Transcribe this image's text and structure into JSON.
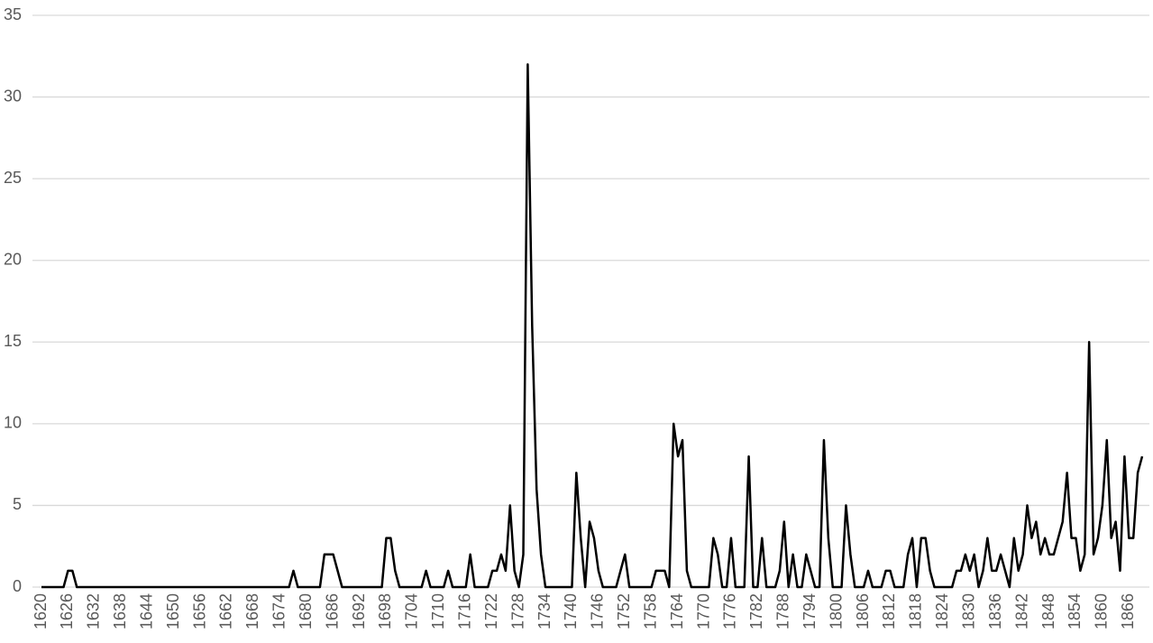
{
  "chart_data": {
    "type": "line",
    "x": [
      1620,
      1621,
      1622,
      1623,
      1624,
      1625,
      1626,
      1627,
      1628,
      1629,
      1630,
      1631,
      1632,
      1633,
      1634,
      1635,
      1636,
      1637,
      1638,
      1639,
      1640,
      1641,
      1642,
      1643,
      1644,
      1645,
      1646,
      1647,
      1648,
      1649,
      1650,
      1651,
      1652,
      1653,
      1654,
      1655,
      1656,
      1657,
      1658,
      1659,
      1660,
      1661,
      1662,
      1663,
      1664,
      1665,
      1666,
      1667,
      1668,
      1669,
      1670,
      1671,
      1672,
      1673,
      1674,
      1675,
      1676,
      1677,
      1678,
      1679,
      1680,
      1681,
      1682,
      1683,
      1684,
      1685,
      1686,
      1687,
      1688,
      1689,
      1690,
      1691,
      1692,
      1693,
      1694,
      1695,
      1696,
      1697,
      1698,
      1699,
      1700,
      1701,
      1702,
      1703,
      1704,
      1705,
      1706,
      1707,
      1708,
      1709,
      1710,
      1711,
      1712,
      1713,
      1714,
      1715,
      1716,
      1717,
      1718,
      1719,
      1720,
      1721,
      1722,
      1723,
      1724,
      1725,
      1726,
      1727,
      1728,
      1729,
      1730,
      1731,
      1732,
      1733,
      1734,
      1735,
      1736,
      1737,
      1738,
      1739,
      1740,
      1741,
      1742,
      1743,
      1744,
      1745,
      1746,
      1747,
      1748,
      1749,
      1750,
      1751,
      1752,
      1753,
      1754,
      1755,
      1756,
      1757,
      1758,
      1759,
      1760,
      1761,
      1762,
      1763,
      1764,
      1765,
      1766,
      1767,
      1768,
      1769,
      1770,
      1771,
      1772,
      1773,
      1774,
      1775,
      1776,
      1777,
      1778,
      1779,
      1780,
      1781,
      1782,
      1783,
      1784,
      1785,
      1786,
      1787,
      1788,
      1789,
      1790,
      1791,
      1792,
      1793,
      1794,
      1795,
      1796,
      1797,
      1798,
      1799,
      1800,
      1801,
      1802,
      1803,
      1804,
      1805,
      1806,
      1807,
      1808,
      1809,
      1810,
      1811,
      1812,
      1813,
      1814,
      1815,
      1816,
      1817,
      1818,
      1819,
      1820,
      1821,
      1822,
      1823,
      1824,
      1825,
      1826,
      1827,
      1828,
      1829,
      1830,
      1831,
      1832,
      1833,
      1834,
      1835,
      1836,
      1837,
      1838,
      1839,
      1840,
      1841,
      1842,
      1843,
      1844,
      1845,
      1846,
      1847,
      1848,
      1849,
      1850,
      1851,
      1852,
      1853,
      1854,
      1855,
      1856,
      1857,
      1858,
      1859,
      1860,
      1861,
      1862,
      1863,
      1864,
      1865,
      1866,
      1867,
      1868,
      1869
    ],
    "series": [
      {
        "color": "#000000",
        "values": [
          0,
          0,
          0,
          0,
          0,
          0,
          1,
          1,
          0,
          0,
          0,
          0,
          0,
          0,
          0,
          0,
          0,
          0,
          0,
          0,
          0,
          0,
          0,
          0,
          0,
          0,
          0,
          0,
          0,
          0,
          0,
          0,
          0,
          0,
          0,
          0,
          0,
          0,
          0,
          0,
          0,
          0,
          0,
          0,
          0,
          0,
          0,
          0,
          0,
          0,
          0,
          0,
          0,
          0,
          0,
          0,
          0,
          1,
          0,
          0,
          0,
          0,
          0,
          0,
          2,
          2,
          2,
          1,
          0,
          0,
          0,
          0,
          0,
          0,
          0,
          0,
          0,
          0,
          3,
          3,
          1,
          0,
          0,
          0,
          0,
          0,
          0,
          1,
          0,
          0,
          0,
          0,
          1,
          0,
          0,
          0,
          0,
          2,
          0,
          0,
          0,
          0,
          1,
          1,
          2,
          1,
          5,
          1,
          0,
          2,
          32,
          16,
          6,
          2,
          0,
          0,
          0,
          0,
          0,
          0,
          0,
          7,
          3,
          0,
          4,
          3,
          1,
          0,
          0,
          0,
          0,
          1,
          2,
          0,
          0,
          0,
          0,
          0,
          0,
          1,
          1,
          1,
          0,
          10,
          8,
          9,
          1,
          0,
          0,
          0,
          0,
          0,
          3,
          2,
          0,
          0,
          3,
          0,
          0,
          0,
          8,
          0,
          0,
          3,
          0,
          0,
          0,
          1,
          4,
          0,
          2,
          0,
          0,
          2,
          1,
          0,
          0,
          9,
          3,
          0,
          0,
          0,
          5,
          2,
          0,
          0,
          0,
          1,
          0,
          0,
          0,
          1,
          1,
          0,
          0,
          0,
          2,
          3,
          0,
          3,
          3,
          1,
          0,
          0,
          0,
          0,
          0,
          1,
          1,
          2,
          1,
          2,
          0,
          1,
          3,
          1,
          1,
          2,
          1,
          0,
          3,
          1,
          2,
          5,
          3,
          4,
          2,
          3,
          2,
          2,
          3,
          4,
          7,
          3,
          3,
          1,
          2,
          15,
          2,
          3,
          5,
          9,
          3,
          4,
          1,
          8,
          3,
          3,
          7,
          8
        ]
      }
    ],
    "xlim": [
      1620,
      1869
    ],
    "xticks": [
      1620,
      1626,
      1632,
      1638,
      1644,
      1650,
      1656,
      1662,
      1668,
      1674,
      1680,
      1686,
      1692,
      1698,
      1704,
      1710,
      1716,
      1722,
      1728,
      1734,
      1740,
      1746,
      1752,
      1758,
      1764,
      1770,
      1776,
      1782,
      1788,
      1794,
      1800,
      1806,
      1812,
      1818,
      1824,
      1830,
      1836,
      1842,
      1848,
      1854,
      1860,
      1866
    ],
    "ylim": [
      0,
      35
    ],
    "yticks": [
      0,
      5,
      10,
      15,
      20,
      25,
      30,
      35
    ],
    "grid": true
  }
}
